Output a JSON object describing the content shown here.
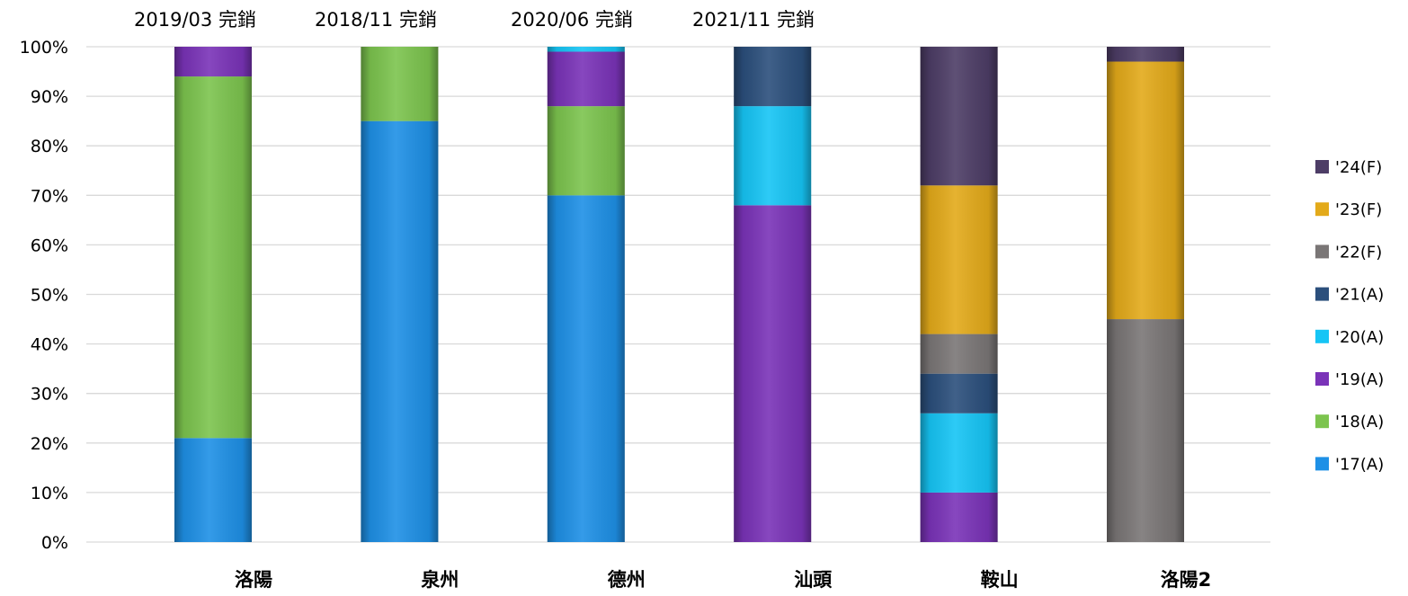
{
  "chart_data": {
    "type": "bar",
    "stacked": "percent",
    "title": "",
    "xlabel": "",
    "ylabel": "",
    "ylim": [
      0,
      100
    ],
    "y_ticks": [
      "0%",
      "10%",
      "20%",
      "30%",
      "40%",
      "50%",
      "60%",
      "70%",
      "80%",
      "90%",
      "100%"
    ],
    "grid": "horizontal",
    "legend_position": "right",
    "categories": [
      "洛陽",
      "泉州",
      "德州",
      "汕頭",
      "鞍山",
      "洛陽2"
    ],
    "annotations": [
      "2019/03 完銷",
      "2018/11 完銷",
      "2020/06 完銷",
      "2021/11 完銷"
    ],
    "series": [
      {
        "name": "'17(A)",
        "color": "#1e90e6",
        "values": [
          21,
          85,
          70,
          0,
          0,
          0
        ]
      },
      {
        "name": "'18(A)",
        "color": "#7cc44e",
        "values": [
          73,
          15,
          18,
          0,
          0,
          0
        ]
      },
      {
        "name": "'19(A)",
        "color": "#7a33b8",
        "values": [
          6,
          0,
          11,
          68,
          10,
          0
        ]
      },
      {
        "name": "'20(A)",
        "color": "#16c5f5",
        "values": [
          0,
          0,
          1,
          20,
          16,
          0
        ]
      },
      {
        "name": "'21(A)",
        "color": "#2b4f7c",
        "values": [
          0,
          0,
          0,
          12,
          8,
          0
        ]
      },
      {
        "name": "'22(F)",
        "color": "#7a7676",
        "values": [
          0,
          0,
          0,
          0,
          8,
          45
        ]
      },
      {
        "name": "'23(F)",
        "color": "#e3aa1a",
        "values": [
          0,
          0,
          0,
          0,
          30,
          52
        ]
      },
      {
        "name": "'24(F)",
        "color": "#4d3d66",
        "values": [
          0,
          0,
          0,
          0,
          28,
          3
        ]
      }
    ]
  }
}
